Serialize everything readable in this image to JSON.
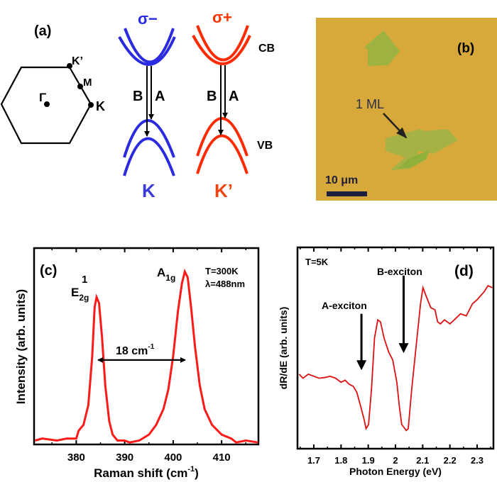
{
  "panel_a": {
    "label": "(a)",
    "bz_points": {
      "gamma": "Γ",
      "k_prime": "K’",
      "m": "M",
      "k": "K"
    },
    "left_valley": {
      "polarization": "σ−",
      "valley": "K",
      "color": "#2a2ae0"
    },
    "right_valley": {
      "polarization": "σ+",
      "valley": "K’",
      "color": "#ff2a00"
    },
    "transition_b": "B",
    "transition_a": "A",
    "cb_label": "CB",
    "vb_label": "VB"
  },
  "panel_b": {
    "label": "(b)",
    "annotation": "1 ML",
    "scale_bar": "10 μm",
    "substrate_color": "#d7a93b",
    "flake_color": "#9db240"
  },
  "chart_data": [
    {
      "panel": "(c)",
      "type": "line",
      "xlabel": "Raman shift (cm-1)",
      "xlabel_main": "Raman shift (cm",
      "xlabel_sup": "-1",
      "xlabel_end": ")",
      "ylabel": "Intensity (arb. units)",
      "xlim": [
        371.3,
        417.6
      ],
      "ylim": [
        0,
        1
      ],
      "xticks": [
        380,
        390,
        400,
        410
      ],
      "xtick_labels": [
        "380",
        "390",
        "400",
        "410"
      ],
      "color": "#ff1a1a",
      "annotations": {
        "conditions_t": "T=300K",
        "conditions_lambda": "λ=488nm",
        "peak1": "E",
        "peak1_sub": "2g",
        "peak1_sup": "1",
        "peak2": "A",
        "peak2_sub": "1g",
        "separation": "18 cm",
        "separation_sup": "-1"
      },
      "arrow": {
        "x_from": 384.5,
        "x_to": 402.5,
        "y": 0.43
      },
      "x": [
        371.5,
        373,
        376,
        378,
        380,
        380.5,
        381.5,
        382.5,
        383.3,
        383.8,
        384.2,
        384.7,
        385.3,
        386,
        386.8,
        387.5,
        388.5,
        390,
        391,
        393,
        395,
        396.5,
        398,
        399,
        400,
        401,
        401.8,
        402.4,
        403,
        403.7,
        404.5,
        405.5,
        406.5,
        408,
        410,
        412,
        413,
        415,
        417.5
      ],
      "y": [
        0.02,
        0.03,
        0.02,
        0.03,
        0.03,
        0.07,
        0.1,
        0.2,
        0.45,
        0.7,
        0.75,
        0.72,
        0.55,
        0.3,
        0.12,
        0.05,
        0.02,
        0.02,
        0.01,
        0.02,
        0.05,
        0.1,
        0.18,
        0.28,
        0.45,
        0.68,
        0.82,
        0.88,
        0.85,
        0.7,
        0.5,
        0.3,
        0.18,
        0.1,
        0.05,
        0.03,
        0.01,
        0.02,
        0.01
      ]
    },
    {
      "panel": "(d)",
      "type": "line",
      "xlabel": "Photon Energy (eV)",
      "ylabel": "dR/dE (arb. units)",
      "xlim": [
        1.64,
        2.36
      ],
      "ylim": [
        0,
        1
      ],
      "xticks": [
        1.7,
        1.8,
        1.9,
        2.0,
        2.1,
        2.2,
        2.3
      ],
      "xtick_labels": [
        "1.7",
        "1.8",
        "1.9",
        "2",
        "2.1",
        "2.2",
        "2.3"
      ],
      "color": "#dd1111",
      "annotations": {
        "conditions_t": "T=5K",
        "a_exciton": "A-exciton",
        "b_exciton": "B-exciton"
      },
      "arrows": [
        {
          "x": 1.875,
          "y_from": 0.67,
          "y_to": 0.39
        },
        {
          "x": 2.03,
          "y_from": 0.86,
          "y_to": 0.475
        }
      ],
      "x": [
        1.646,
        1.66,
        1.68,
        1.7,
        1.72,
        1.746,
        1.76,
        1.78,
        1.8,
        1.815,
        1.83,
        1.845,
        1.858,
        1.87,
        1.884,
        1.892,
        1.901,
        1.912,
        1.923,
        1.935,
        1.945,
        1.958,
        1.975,
        1.99,
        2.005,
        2.015,
        2.023,
        2.04,
        2.047,
        2.06,
        2.079,
        2.092,
        2.101,
        2.115,
        2.13,
        2.145,
        2.155,
        2.165,
        2.18,
        2.2,
        2.22,
        2.239,
        2.26,
        2.283,
        2.3,
        2.326,
        2.34,
        2.356
      ],
      "y": [
        0.37,
        0.35,
        0.37,
        0.36,
        0.35,
        0.355,
        0.36,
        0.35,
        0.33,
        0.34,
        0.32,
        0.31,
        0.28,
        0.22,
        0.15,
        0.1,
        0.12,
        0.3,
        0.55,
        0.64,
        0.63,
        0.55,
        0.48,
        0.44,
        0.33,
        0.2,
        0.12,
        0.09,
        0.1,
        0.3,
        0.55,
        0.72,
        0.8,
        0.75,
        0.7,
        0.69,
        0.63,
        0.62,
        0.64,
        0.62,
        0.645,
        0.67,
        0.66,
        0.72,
        0.74,
        0.78,
        0.81,
        0.8
      ]
    }
  ]
}
